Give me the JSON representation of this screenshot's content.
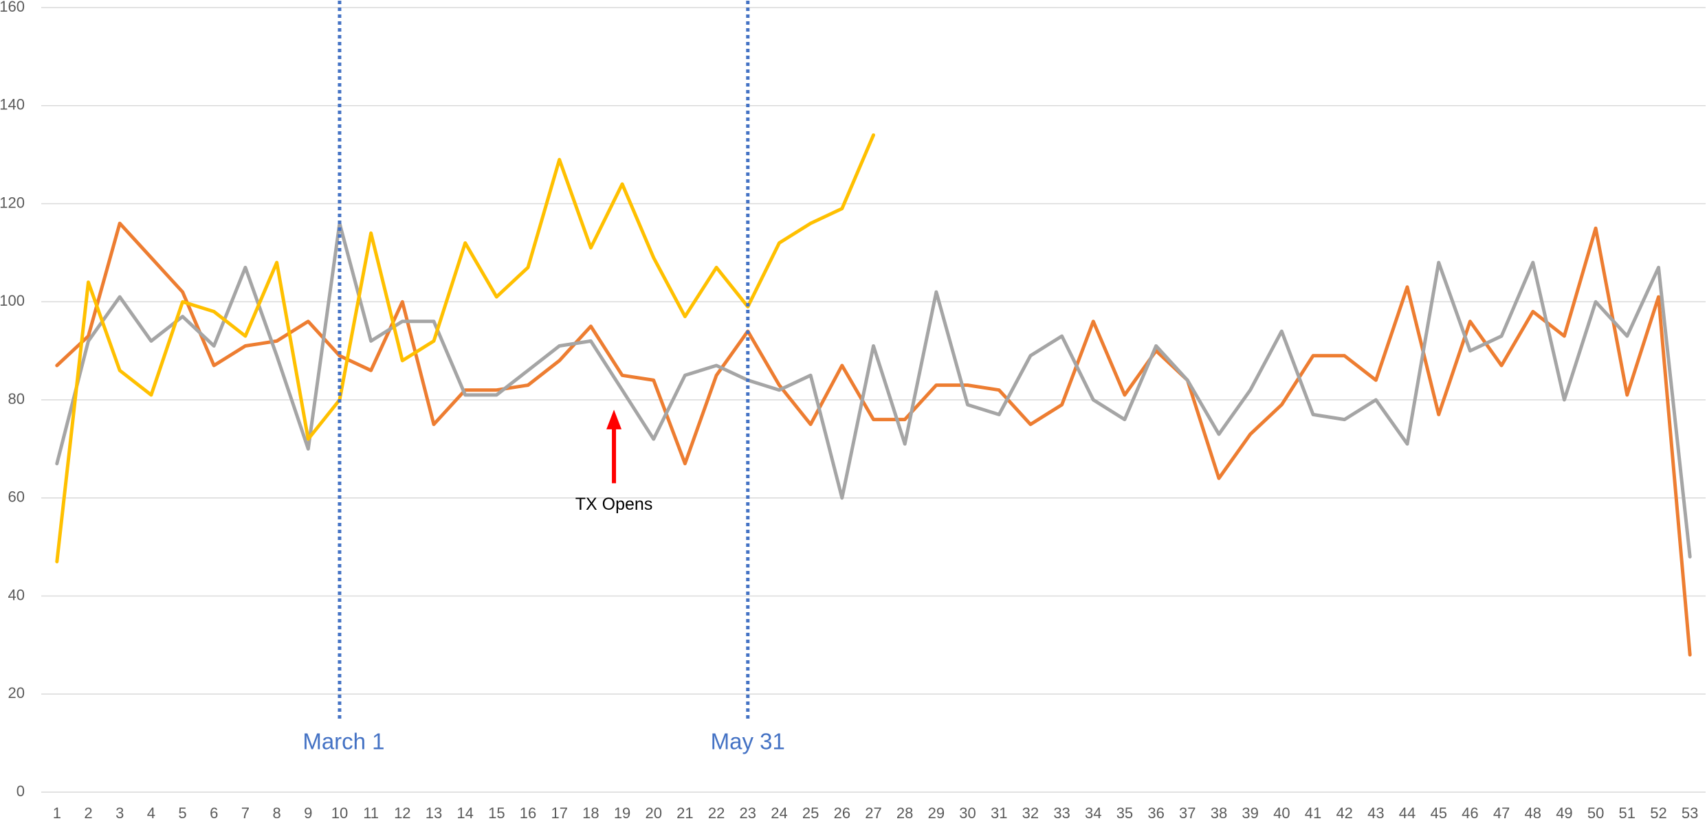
{
  "chart_data": {
    "type": "line",
    "categories": [
      "1",
      "2",
      "3",
      "4",
      "5",
      "6",
      "7",
      "8",
      "9",
      "10",
      "11",
      "12",
      "13",
      "14",
      "15",
      "16",
      "17",
      "18",
      "19",
      "20",
      "21",
      "22",
      "23",
      "24",
      "25",
      "26",
      "27",
      "28",
      "29",
      "30",
      "31",
      "32",
      "33",
      "34",
      "35",
      "36",
      "37",
      "38",
      "39",
      "40",
      "41",
      "42",
      "43",
      "44",
      "45",
      "46",
      "47",
      "48",
      "49",
      "50",
      "51",
      "52",
      "53"
    ],
    "series": [
      {
        "color": "#ed7d31",
        "values": [
          87,
          93,
          116,
          109,
          102,
          87,
          91,
          92,
          96,
          89,
          86,
          100,
          75,
          82,
          82,
          83,
          88,
          95,
          85,
          84,
          67,
          85,
          94,
          83,
          75,
          87,
          76,
          76,
          83,
          83,
          82,
          75,
          79,
          96,
          81,
          90,
          84,
          64,
          73,
          79,
          89,
          89,
          84,
          103,
          77,
          96,
          87,
          98,
          93,
          115,
          81,
          101,
          28
        ]
      },
      {
        "color": "#a5a5a5",
        "values": [
          67,
          92,
          101,
          92,
          97,
          91,
          107,
          89,
          70,
          116,
          92,
          96,
          96,
          81,
          81,
          86,
          91,
          92,
          82,
          72,
          85,
          87,
          84,
          82,
          85,
          60,
          91,
          71,
          102,
          79,
          77,
          89,
          93,
          80,
          76,
          91,
          84,
          73,
          82,
          94,
          77,
          76,
          80,
          71,
          108,
          90,
          93,
          108,
          80,
          100,
          93,
          107,
          48
        ]
      },
      {
        "color": "#ffc000",
        "values": [
          47,
          104,
          86,
          81,
          100,
          98,
          93,
          108,
          72,
          80,
          114,
          88,
          92,
          112,
          101,
          107,
          129,
          111,
          124,
          109,
          97,
          107,
          99,
          112,
          116,
          119,
          134,
          null,
          null,
          null,
          null,
          null,
          null,
          null,
          null,
          null,
          null,
          null,
          null,
          null,
          null,
          null,
          null,
          null,
          null,
          null,
          null,
          null,
          null,
          null,
          null,
          null,
          null
        ]
      }
    ],
    "ylim": [
      0,
      160
    ],
    "yticks": [
      0,
      20,
      40,
      60,
      80,
      100,
      120,
      140,
      160
    ],
    "grid": true,
    "annotations": [
      {
        "text": "March 1",
        "x": 10,
        "color": "#4472c4",
        "style": "dotted-line"
      },
      {
        "text": "May 31",
        "x": 23,
        "color": "#4472c4",
        "style": "dotted-line"
      },
      {
        "text": "TX Opens",
        "x": 19,
        "color": "#ff0000",
        "style": "arrow"
      }
    ]
  }
}
